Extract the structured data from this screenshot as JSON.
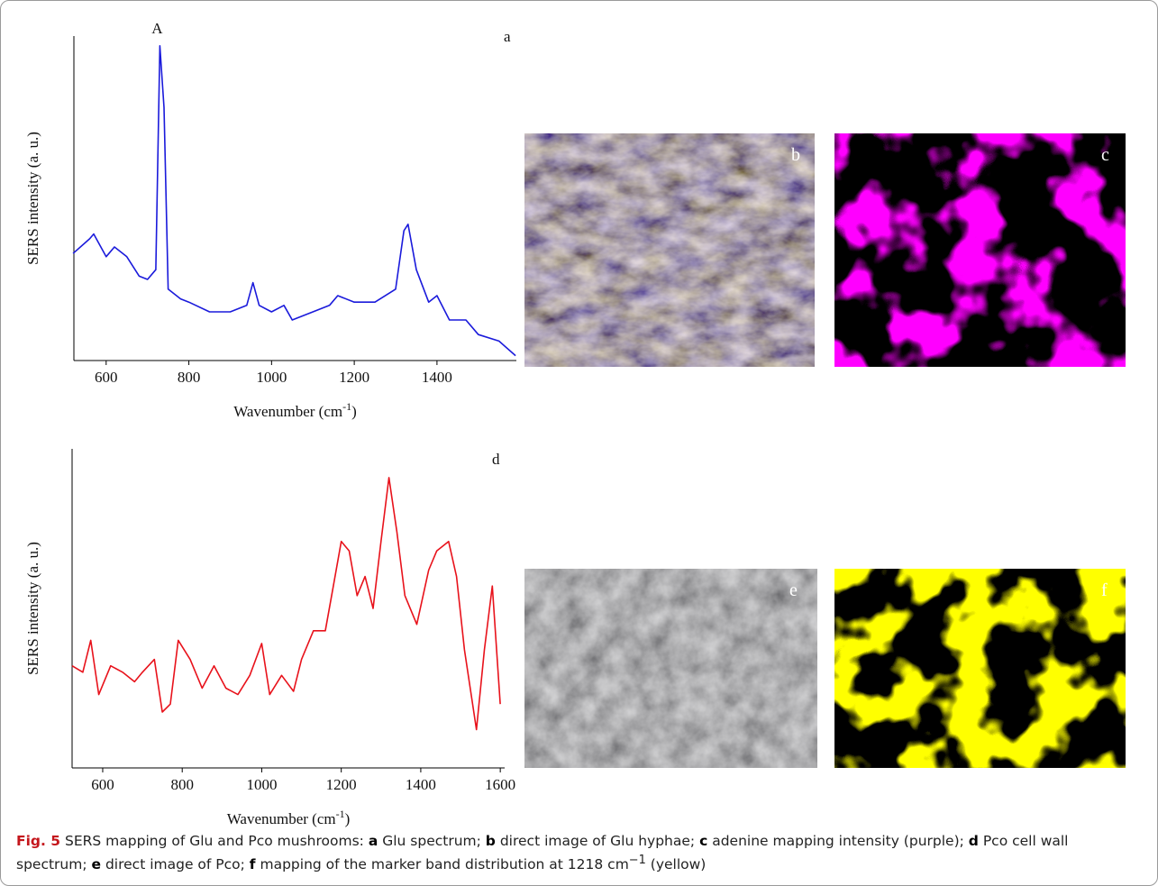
{
  "chart_data": [
    {
      "type": "line",
      "panel_label": "a",
      "annotation": {
        "text": "A",
        "x": 732,
        "y": 97
      },
      "ylabel": "SERS intensity (a. u.)",
      "xlabel": {
        "text": "Wavenumber (cm",
        "sup": "-1",
        "tail": ")"
      },
      "x": [
        520,
        560,
        570,
        600,
        620,
        650,
        680,
        700,
        720,
        730,
        740,
        750,
        780,
        800,
        850,
        900,
        940,
        955,
        970,
        1000,
        1030,
        1050,
        1100,
        1140,
        1160,
        1200,
        1250,
        1300,
        1320,
        1330,
        1350,
        1380,
        1400,
        1430,
        1470,
        1500,
        1550,
        1590
      ],
      "series": [
        {
          "color": "#1a1adb",
          "values": [
            33,
            37.5,
            39,
            32,
            35,
            32,
            26,
            25,
            28,
            97,
            78,
            22,
            19,
            18,
            15,
            15,
            17,
            24,
            17,
            15,
            17,
            12.5,
            15,
            17,
            20,
            18,
            18,
            22,
            40,
            42,
            28,
            18,
            20,
            12.5,
            12.5,
            8,
            6,
            1.5
          ]
        }
      ],
      "xlim": [
        522,
        1592
      ],
      "ylim": [
        0,
        100
      ],
      "xticks": [
        600,
        800,
        1000,
        1200,
        1400
      ]
    },
    {
      "type": "line",
      "panel_label": "d",
      "ylabel": "SERS intensity (a. u.)",
      "xlabel": {
        "text": "Wavenumber (cm",
        "sup": "-1",
        "tail": ")"
      },
      "x": [
        523,
        550,
        570,
        590,
        620,
        650,
        680,
        700,
        730,
        750,
        770,
        790,
        820,
        850,
        880,
        910,
        940,
        970,
        1000,
        1020,
        1050,
        1080,
        1100,
        1130,
        1160,
        1180,
        1200,
        1220,
        1240,
        1260,
        1280,
        1300,
        1320,
        1340,
        1360,
        1390,
        1420,
        1440,
        1470,
        1490,
        1510,
        1540,
        1560,
        1580,
        1600
      ],
      "series": [
        {
          "color": "#e8121b",
          "values": [
            32,
            30,
            40,
            23,
            32,
            30,
            27,
            30,
            34,
            17.5,
            20,
            40,
            34,
            25,
            32,
            25,
            23,
            29,
            39,
            23,
            29,
            24,
            34,
            43,
            43,
            57,
            71,
            68,
            54,
            60,
            50,
            71,
            91,
            74,
            54,
            45,
            62,
            68,
            71,
            60,
            37,
            12,
            37,
            57,
            20
          ]
        }
      ],
      "xlim": [
        523,
        1611
      ],
      "ylim": [
        0,
        100
      ],
      "xticks": [
        600,
        800,
        1000,
        1200,
        1400,
        1600
      ]
    }
  ],
  "images": [
    {
      "label": "b"
    },
    {
      "label": "c"
    },
    {
      "label": "e"
    },
    {
      "label": "f"
    }
  ],
  "caption": {
    "label": "Fig. 5",
    "intro": "SERS mapping of Glu and Pco mushrooms:",
    "items": [
      {
        "key": "a",
        "text": "Glu spectrum;"
      },
      {
        "key": "b",
        "text": "direct image of Glu hyphae;"
      },
      {
        "key": "c",
        "text": "adenine mapping intensity (purple);"
      },
      {
        "key": "d",
        "text": "Pco cell wall spectrum;"
      },
      {
        "key": "e",
        "text": "direct image of Pco;"
      },
      {
        "key": "f",
        "text": "mapping of the marker band distribution at 1218 cm",
        "sup": "−1",
        "tail": "(yellow)"
      }
    ]
  }
}
